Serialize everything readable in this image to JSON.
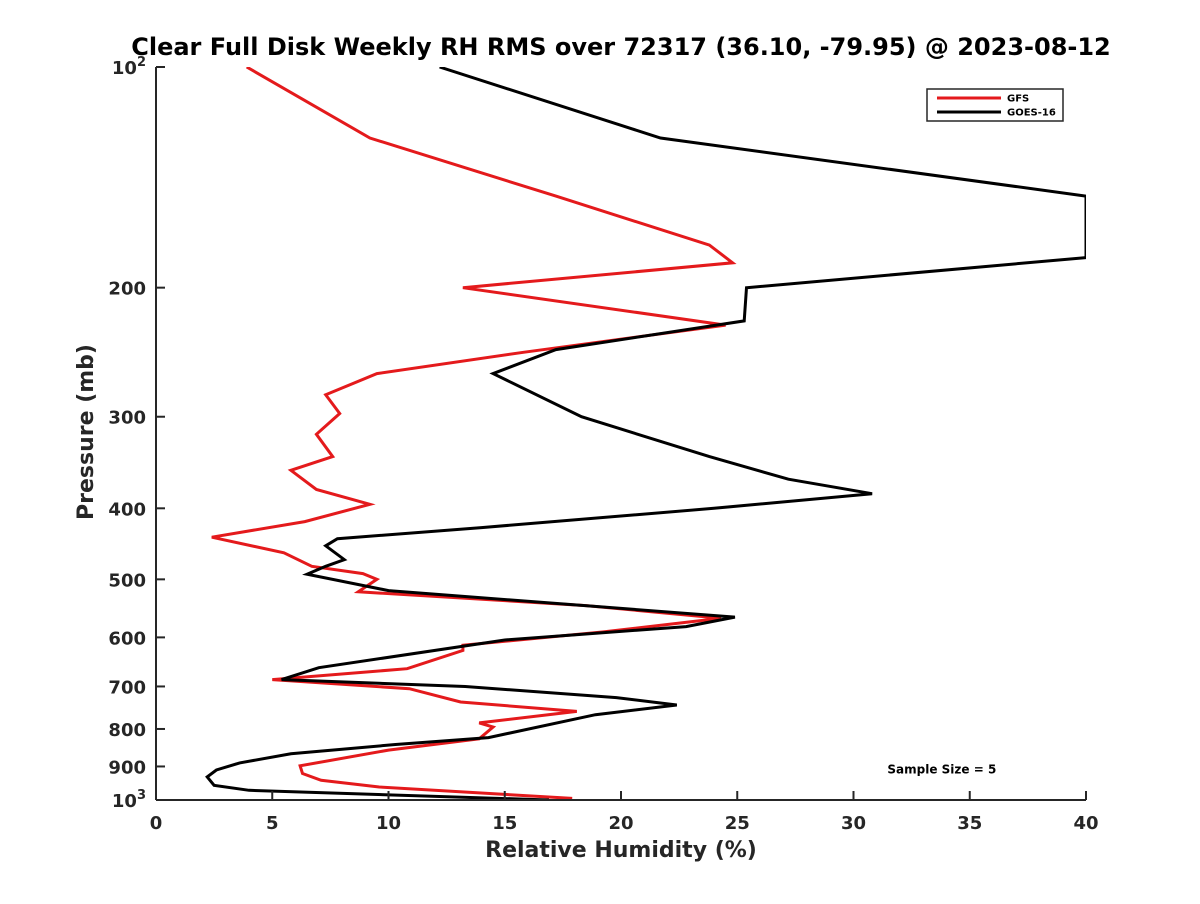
{
  "chart_data": {
    "type": "line",
    "title": "Clear Full Disk Weekly RH RMS over 72317 (36.10, -79.95) @ 2023-08-12",
    "xlabel": "Relative Humidity (%)",
    "ylabel": "Pressure (mb)",
    "xlim": [
      0,
      40
    ],
    "ylim": [
      100,
      1000
    ],
    "y_scale": "log",
    "y_reversed": true,
    "x_ticks": [
      "0",
      "5",
      "10",
      "15",
      "20",
      "25",
      "30",
      "35",
      "40"
    ],
    "y_ticks": [
      {
        "value": 100,
        "base": "10",
        "exp": "2"
      },
      {
        "value": 200,
        "label": "200"
      },
      {
        "value": 300,
        "label": "300"
      },
      {
        "value": 400,
        "label": "400"
      },
      {
        "value": 500,
        "label": "500"
      },
      {
        "value": 600,
        "label": "600"
      },
      {
        "value": 700,
        "label": "700"
      },
      {
        "value": 800,
        "label": "800"
      },
      {
        "value": 900,
        "label": "900"
      },
      {
        "value": 1000,
        "base": "10",
        "exp": "3"
      }
    ],
    "grid": false,
    "legend_position": "top-right",
    "series": [
      {
        "name": "GFS",
        "color": "#e41a1c",
        "points": [
          [
            3.9,
            100
          ],
          [
            9.2,
            125
          ],
          [
            17.2,
            150
          ],
          [
            23.8,
            175
          ],
          [
            24.8,
            185
          ],
          [
            13.2,
            200
          ],
          [
            24.5,
            225
          ],
          [
            15.8,
            245
          ],
          [
            9.5,
            262
          ],
          [
            7.3,
            280
          ],
          [
            7.9,
            297
          ],
          [
            6.9,
            317
          ],
          [
            7.6,
            340
          ],
          [
            5.8,
            355
          ],
          [
            6.9,
            377
          ],
          [
            9.2,
            395
          ],
          [
            6.4,
            417
          ],
          [
            2.4,
            438
          ],
          [
            5.5,
            460
          ],
          [
            6.7,
            480
          ],
          [
            8.9,
            491
          ],
          [
            9.5,
            500
          ],
          [
            8.7,
            520
          ],
          [
            18.5,
            543
          ],
          [
            24.3,
            565
          ],
          [
            19.2,
            590
          ],
          [
            13.2,
            615
          ],
          [
            13.2,
            625
          ],
          [
            10.8,
            662
          ],
          [
            5.0,
            685
          ],
          [
            10.9,
            705
          ],
          [
            13.1,
            735
          ],
          [
            18.1,
            757
          ],
          [
            13.9,
            785
          ],
          [
            14.5,
            795
          ],
          [
            13.9,
            825
          ],
          [
            10.0,
            855
          ],
          [
            6.2,
            898
          ],
          [
            6.3,
            920
          ],
          [
            7.1,
            940
          ],
          [
            9.6,
            960
          ],
          [
            17.9,
            995
          ]
        ]
      },
      {
        "name": "GOES-16",
        "color": "#000000",
        "points": [
          [
            12.2,
            100
          ],
          [
            21.7,
            125
          ],
          [
            40.0,
            150
          ],
          [
            40.0,
            182
          ],
          [
            25.4,
            200
          ],
          [
            25.3,
            222
          ],
          [
            17.2,
            243
          ],
          [
            14.5,
            262
          ],
          [
            18.3,
            300
          ],
          [
            23.8,
            340
          ],
          [
            27.2,
            365
          ],
          [
            30.8,
            382
          ],
          [
            24.0,
            400
          ],
          [
            14.0,
            425
          ],
          [
            7.8,
            440
          ],
          [
            7.3,
            450
          ],
          [
            8.1,
            470
          ],
          [
            7.3,
            480
          ],
          [
            6.5,
            492
          ],
          [
            10.0,
            518
          ],
          [
            24.9,
            563
          ],
          [
            22.8,
            580
          ],
          [
            15.0,
            605
          ],
          [
            7.0,
            660
          ],
          [
            5.4,
            685
          ],
          [
            13.3,
            700
          ],
          [
            19.8,
            725
          ],
          [
            22.4,
            742
          ],
          [
            18.9,
            765
          ],
          [
            14.3,
            822
          ],
          [
            10.3,
            840
          ],
          [
            5.8,
            865
          ],
          [
            3.6,
            890
          ],
          [
            2.6,
            910
          ],
          [
            2.2,
            930
          ],
          [
            2.5,
            955
          ],
          [
            4.0,
            970
          ],
          [
            16.9,
            1000
          ]
        ]
      }
    ],
    "annotations": [
      {
        "text": "Sample Size = 5",
        "x": 33.8,
        "y": 920
      }
    ]
  }
}
